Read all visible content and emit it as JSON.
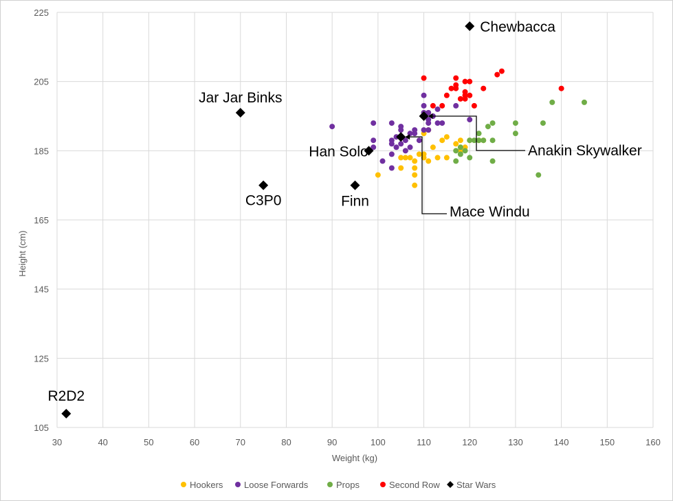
{
  "chart_data": {
    "type": "scatter",
    "title": "",
    "xlabel": "Weight (kg)",
    "ylabel": "Height (cm)",
    "xlim": [
      30,
      160
    ],
    "ylim": [
      105,
      225
    ],
    "xticks": [
      30,
      40,
      50,
      60,
      70,
      80,
      90,
      100,
      110,
      120,
      130,
      140,
      150,
      160
    ],
    "yticks": [
      105,
      125,
      145,
      165,
      185,
      205,
      225
    ],
    "grid": true,
    "legend_position": "bottom",
    "series": [
      {
        "name": "Hookers",
        "color": "#ffc000",
        "marker": "circle",
        "points": [
          [
            100,
            178
          ],
          [
            105,
            180
          ],
          [
            105,
            183
          ],
          [
            106,
            183
          ],
          [
            107,
            183
          ],
          [
            108,
            182
          ],
          [
            108,
            180
          ],
          [
            108,
            178
          ],
          [
            108,
            175
          ],
          [
            109,
            184
          ],
          [
            110,
            183
          ],
          [
            110,
            184
          ],
          [
            110,
            190
          ],
          [
            111,
            182
          ],
          [
            111,
            191
          ],
          [
            112,
            186
          ],
          [
            113,
            183
          ],
          [
            114,
            188
          ],
          [
            115,
            183
          ],
          [
            115,
            189
          ],
          [
            117,
            187
          ],
          [
            118,
            188
          ],
          [
            118,
            185
          ],
          [
            119,
            186
          ],
          [
            120,
            188
          ],
          [
            122,
            188
          ],
          [
            123,
            188
          ]
        ]
      },
      {
        "name": "Loose Forwards",
        "color": "#7030a0",
        "marker": "circle",
        "points": [
          [
            90,
            192
          ],
          [
            99,
            193
          ],
          [
            99,
            188
          ],
          [
            99,
            186
          ],
          [
            101,
            182
          ],
          [
            103,
            180
          ],
          [
            103,
            184
          ],
          [
            103,
            187
          ],
          [
            103,
            188
          ],
          [
            103,
            193
          ],
          [
            104,
            186
          ],
          [
            104,
            189
          ],
          [
            105,
            187
          ],
          [
            105,
            191
          ],
          [
            105,
            192
          ],
          [
            106,
            185
          ],
          [
            106,
            188
          ],
          [
            107,
            186
          ],
          [
            107,
            190
          ],
          [
            108,
            190
          ],
          [
            108,
            191
          ],
          [
            109,
            188
          ],
          [
            110,
            191
          ],
          [
            110,
            196
          ],
          [
            110,
            198
          ],
          [
            110,
            201
          ],
          [
            111,
            191
          ],
          [
            111,
            193
          ],
          [
            111,
            194
          ],
          [
            111,
            196
          ],
          [
            112,
            195
          ],
          [
            113,
            193
          ],
          [
            113,
            197
          ],
          [
            114,
            193
          ],
          [
            117,
            198
          ],
          [
            120,
            194
          ]
        ]
      },
      {
        "name": "Props",
        "color": "#70ad47",
        "marker": "circle",
        "points": [
          [
            117,
            182
          ],
          [
            117,
            185
          ],
          [
            118,
            184
          ],
          [
            118,
            186
          ],
          [
            119,
            185
          ],
          [
            120,
            183
          ],
          [
            120,
            188
          ],
          [
            121,
            188
          ],
          [
            122,
            188
          ],
          [
            122,
            190
          ],
          [
            123,
            188
          ],
          [
            124,
            192
          ],
          [
            125,
            193
          ],
          [
            125,
            188
          ],
          [
            125,
            182
          ],
          [
            130,
            193
          ],
          [
            130,
            190
          ],
          [
            135,
            178
          ],
          [
            136,
            193
          ],
          [
            138,
            199
          ],
          [
            145,
            199
          ]
        ]
      },
      {
        "name": "Second Row",
        "color": "#ff0000",
        "marker": "circle",
        "points": [
          [
            110,
            206
          ],
          [
            112,
            198
          ],
          [
            114,
            198
          ],
          [
            115,
            201
          ],
          [
            116,
            203
          ],
          [
            117,
            203
          ],
          [
            117,
            204
          ],
          [
            117,
            206
          ],
          [
            118,
            200
          ],
          [
            119,
            200
          ],
          [
            119,
            201
          ],
          [
            119,
            202
          ],
          [
            119,
            205
          ],
          [
            120,
            201
          ],
          [
            120,
            205
          ],
          [
            121,
            198
          ],
          [
            123,
            203
          ],
          [
            126,
            207
          ],
          [
            127,
            208
          ],
          [
            140,
            203
          ]
        ]
      },
      {
        "name": "Star Wars",
        "color": "#000000",
        "marker": "diamond",
        "points": [
          [
            32,
            109,
            "R2D2"
          ],
          [
            70,
            196,
            "Jar Jar Binks"
          ],
          [
            75,
            175,
            "C3P0"
          ],
          [
            95,
            175,
            "Finn"
          ],
          [
            98,
            185,
            "Han Solo"
          ],
          [
            105,
            189,
            "Mace Windu"
          ],
          [
            110,
            195,
            "Anakin Skywalker"
          ],
          [
            120,
            221,
            "Chewbacca"
          ]
        ]
      }
    ],
    "annotations": [
      "R2D2",
      "Jar Jar Binks",
      "C3P0",
      "Finn",
      "Han Solo",
      "Chewbacca",
      "Anakin Skywalker",
      "Mace Windu"
    ]
  }
}
